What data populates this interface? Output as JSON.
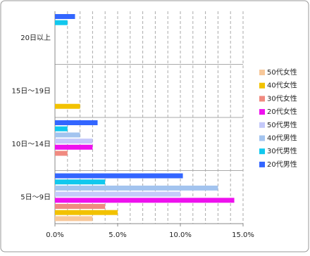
{
  "chart_data": {
    "type": "hbar",
    "categories": [
      "20日以上",
      "15日～19日",
      "10日～14日",
      "5日～9日"
    ],
    "series": [
      {
        "name": "20代男性",
        "color": "#3366ff",
        "values": [
          1.6,
          0,
          3.4,
          10.2
        ]
      },
      {
        "name": "30代男性",
        "color": "#11c8ee",
        "values": [
          1.0,
          0,
          1.0,
          4.0
        ]
      },
      {
        "name": "40代男性",
        "color": "#a3c4ef",
        "values": [
          0,
          0,
          2.0,
          13.0
        ]
      },
      {
        "name": "50代男性",
        "color": "#c4c9fa",
        "values": [
          0,
          0,
          3.0,
          10.0
        ]
      },
      {
        "name": "20代女性",
        "color": "#ee11ee",
        "values": [
          0,
          0,
          3.0,
          14.3
        ]
      },
      {
        "name": "30代女性",
        "color": "#f08a80",
        "values": [
          0,
          0,
          1.0,
          4.0
        ]
      },
      {
        "name": "40代女性",
        "color": "#f2c200",
        "values": [
          0,
          2.0,
          0,
          5.0
        ]
      },
      {
        "name": "50代女性",
        "color": "#f7c89a",
        "values": [
          0,
          0,
          0,
          3.0
        ]
      }
    ],
    "xlim": [
      0,
      15
    ],
    "xticks": [
      {
        "value": 0,
        "label": "0.0%"
      },
      {
        "value": 5,
        "label": "5.0%"
      },
      {
        "value": 10,
        "label": "10.0%"
      },
      {
        "value": 15,
        "label": "15.0%"
      }
    ],
    "xgrid": [
      1,
      2,
      3,
      4,
      5,
      6,
      7,
      8,
      9,
      10,
      11,
      12,
      13,
      14,
      15
    ],
    "legend": "right"
  }
}
